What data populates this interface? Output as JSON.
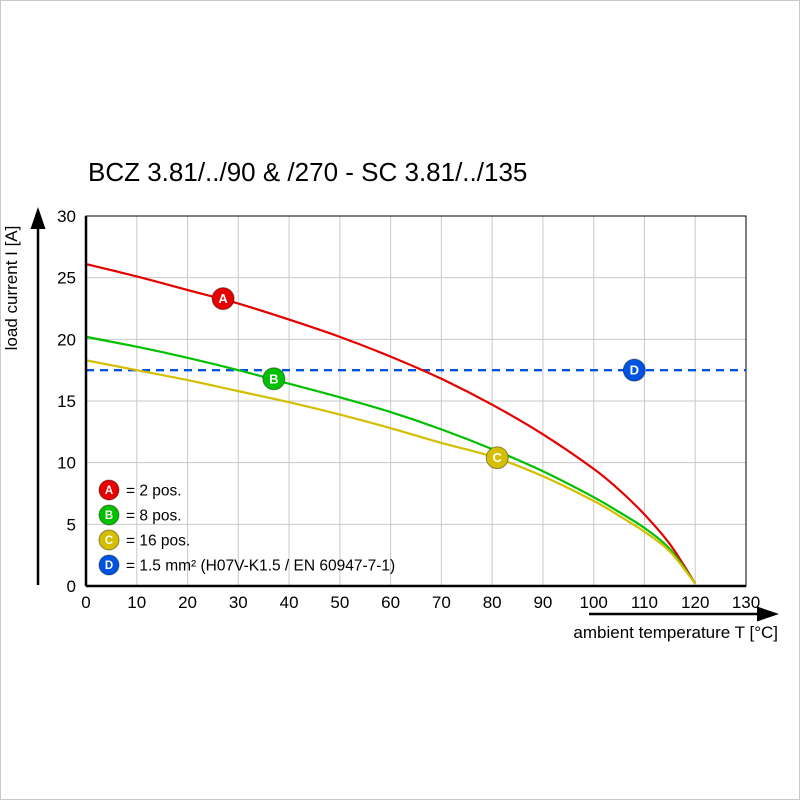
{
  "page": {
    "title": "BCZ 3.81/../90 & /270 - SC 3.81/../135"
  },
  "chart_data": {
    "type": "line",
    "title": "BCZ 3.81/../90 & /270 - SC 3.81/../135",
    "xlabel": "ambient temperature T [°C]",
    "ylabel": "load current I [A]",
    "xlim": [
      0,
      130
    ],
    "ylim": [
      0,
      30
    ],
    "x_ticks": [
      0,
      10,
      20,
      30,
      40,
      50,
      60,
      70,
      80,
      90,
      100,
      110,
      120,
      130
    ],
    "y_ticks": [
      0,
      5,
      10,
      15,
      20,
      25,
      30
    ],
    "grid": true,
    "grid_color": "#c9c9c9",
    "axis_color": "#000000",
    "legend_position": "bottom-left-inside",
    "series": [
      {
        "id": "A",
        "legend_label": "= 2 pos.",
        "color": "#e60000",
        "line_style": "solid",
        "marker": {
          "x": 27,
          "y": 23.3
        },
        "x": [
          0,
          10,
          20,
          30,
          40,
          50,
          60,
          70,
          80,
          90,
          100,
          105,
          110,
          115,
          120
        ],
        "y": [
          26.1,
          25.1,
          24.0,
          22.9,
          21.6,
          20.2,
          18.6,
          16.8,
          14.7,
          12.3,
          9.5,
          7.8,
          5.8,
          3.4,
          0.2
        ]
      },
      {
        "id": "B",
        "legend_label": "= 8 pos.",
        "color": "#00c000",
        "line_style": "solid",
        "marker": {
          "x": 37,
          "y": 16.8
        },
        "x": [
          0,
          10,
          20,
          30,
          40,
          50,
          60,
          70,
          80,
          90,
          100,
          105,
          110,
          115,
          120
        ],
        "y": [
          20.2,
          19.4,
          18.5,
          17.5,
          16.4,
          15.3,
          14.1,
          12.7,
          11.1,
          9.3,
          7.2,
          6.0,
          4.7,
          3.0,
          0.2
        ]
      },
      {
        "id": "C",
        "legend_label": "= 16 pos.",
        "color": "#d4be00",
        "line_style": "solid",
        "marker": {
          "x": 81,
          "y": 10.4
        },
        "x": [
          0,
          10,
          20,
          30,
          40,
          50,
          60,
          70,
          80,
          90,
          100,
          105,
          110,
          115,
          120
        ],
        "y": [
          18.3,
          17.5,
          16.7,
          15.8,
          14.9,
          13.9,
          12.8,
          11.6,
          10.5,
          8.9,
          6.9,
          5.7,
          4.4,
          2.8,
          0.2
        ]
      },
      {
        "id": "D",
        "legend_label": "= 1.5 mm² (H07V-K1.5 / EN 60947-7-1)",
        "color": "#0052e0",
        "line_style": "dashed",
        "marker": {
          "x": 108,
          "y": 17.5
        },
        "x": [
          0,
          130
        ],
        "y": [
          17.5,
          17.5
        ]
      }
    ]
  }
}
